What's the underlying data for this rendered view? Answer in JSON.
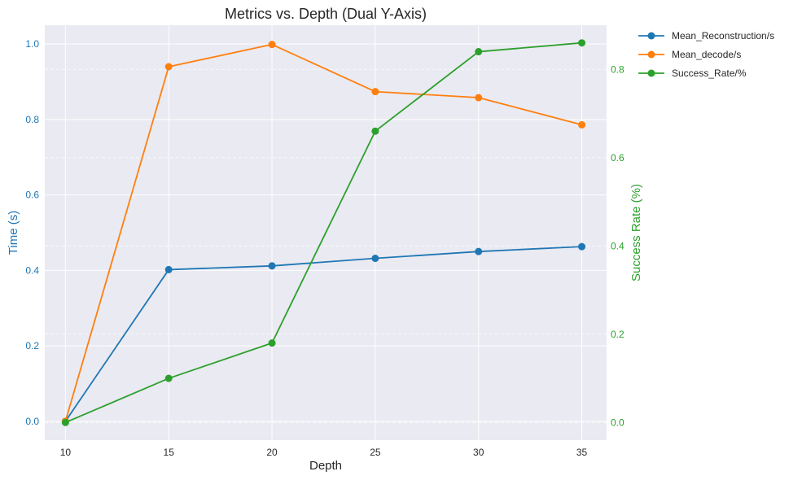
{
  "chart_data": {
    "type": "line",
    "title": "Metrics vs. Depth (Dual Y-Axis)",
    "xlabel": "Depth",
    "ylabel_left": "Time (s)",
    "ylabel_right": "Success Rate (%)",
    "x": [
      10,
      15,
      20,
      25,
      30,
      35
    ],
    "x_ticks": [
      "10",
      "15",
      "20",
      "25",
      "30",
      "35"
    ],
    "xlim": [
      9,
      36.2
    ],
    "ylim_left": [
      -0.05,
      1.05
    ],
    "yticks_left": [
      "0.0",
      "0.2",
      "0.4",
      "0.6",
      "0.8",
      "1.0"
    ],
    "ylim_right": [
      -0.04,
      0.9
    ],
    "yticks_right": [
      "0.0",
      "0.2",
      "0.4",
      "0.6",
      "0.8"
    ],
    "grid": true,
    "legend_position": "outside-top-right",
    "series": [
      {
        "name": "Mean_Reconstruction/s",
        "axis": "left",
        "color": "#1f77b4",
        "values": [
          0.0,
          0.402,
          0.412,
          0.432,
          0.45,
          0.463
        ]
      },
      {
        "name": "Mean_decode/s",
        "axis": "left",
        "color": "#ff7f0e",
        "values": [
          0.0,
          0.94,
          0.999,
          0.874,
          0.858,
          0.786
        ]
      },
      {
        "name": "Success_Rate/%",
        "axis": "right",
        "color": "#2ca02c",
        "values": [
          0.0,
          0.1,
          0.18,
          0.66,
          0.84,
          0.86
        ]
      }
    ],
    "colors": {
      "left_axis": "#1f77b4",
      "right_axis": "#2ca02c",
      "plot_bg": "#eaeaf2"
    }
  }
}
